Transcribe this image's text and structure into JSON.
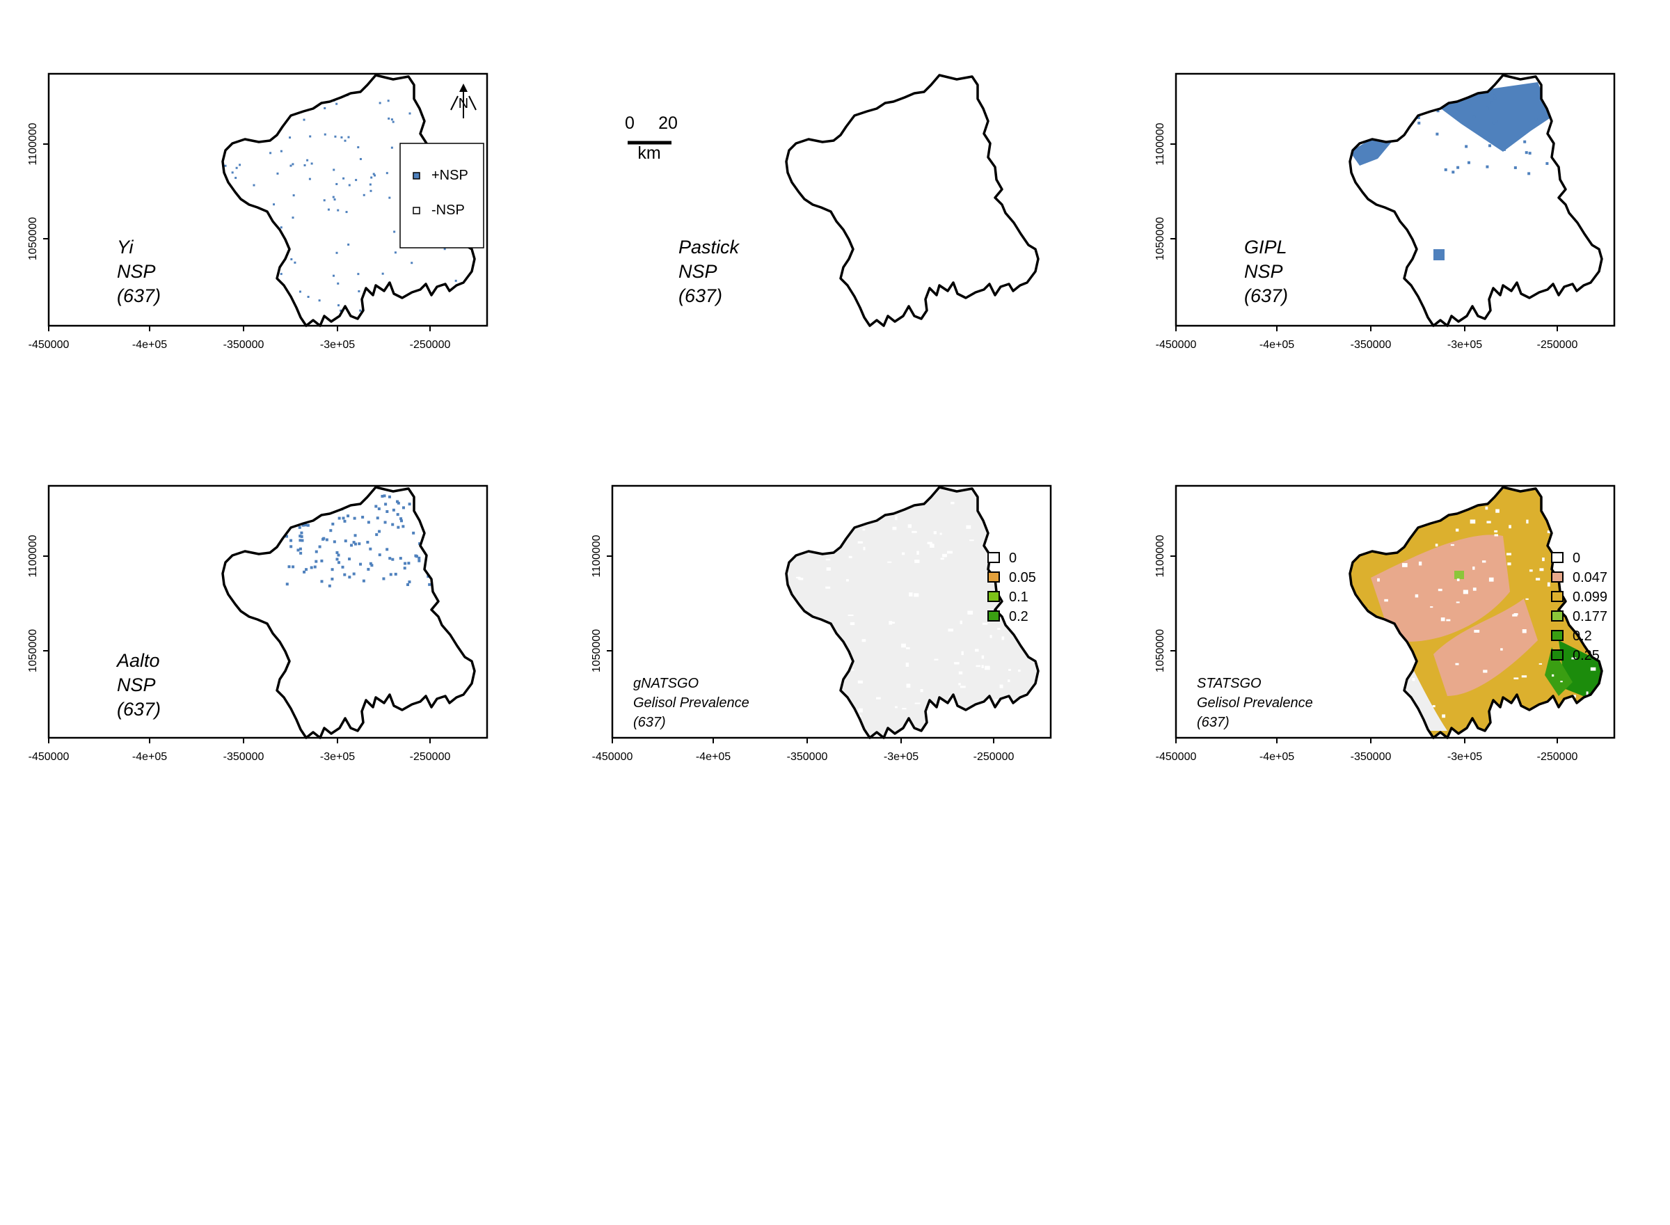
{
  "axes": {
    "x_ticks": [
      "-450000",
      "-4e+05",
      "-350000",
      "-3e+05",
      "-250000"
    ],
    "y_ticks": [
      "1100000",
      "1050000"
    ]
  },
  "colors": {
    "nsp_blue": "#4f81bd",
    "prevalence_grey": "#efefef",
    "c0": "#ffffff",
    "c0047": "#e8a98c",
    "c005": "#e3a13c",
    "c0099": "#dcb02e",
    "c01": "#7cc218",
    "c0177": "#8bc63a",
    "c02": "#3a9e12",
    "c025": "#1c8c0c"
  },
  "panels": [
    {
      "id": "yi",
      "title_lines": [
        "Yi",
        "NSP",
        "(637)"
      ],
      "legend_items": [
        {
          "label": "+NSP",
          "color": "#4f81bd"
        },
        {
          "label": "-NSP",
          "color": "#ffffff"
        }
      ],
      "north_label": "N"
    },
    {
      "id": "pastick",
      "title_lines": [
        "Pastick",
        "NSP",
        "(637)"
      ],
      "scalebar": {
        "labels": [
          "0",
          "20"
        ],
        "unit": "km"
      }
    },
    {
      "id": "gipl",
      "title_lines": [
        "GIPL",
        "NSP",
        "(637)"
      ]
    },
    {
      "id": "aalto",
      "title_lines": [
        "Aalto",
        "NSP",
        "(637)"
      ]
    },
    {
      "id": "gnatsgo",
      "title_lines": [
        "gNATSGO",
        "Gelisol Prevalence",
        "(637)"
      ],
      "legend_items": [
        {
          "label": "0",
          "color": "#ffffff"
        },
        {
          "label": "0.05",
          "color": "#e3a13c"
        },
        {
          "label": "0.1",
          "color": "#7cc218"
        },
        {
          "label": "0.2",
          "color": "#3a9e12"
        }
      ]
    },
    {
      "id": "statsgo",
      "title_lines": [
        "STATSGO",
        "Gelisol Prevalence",
        "(637)"
      ],
      "legend_items": [
        {
          "label": "0",
          "color": "#ffffff"
        },
        {
          "label": "0.047",
          "color": "#e8a98c"
        },
        {
          "label": "0.099",
          "color": "#dcb02e"
        },
        {
          "label": "0.177",
          "color": "#8bc63a"
        },
        {
          "label": "0.2",
          "color": "#3a9e12"
        },
        {
          "label": "0.25",
          "color": "#1c8c0c"
        }
      ]
    }
  ]
}
